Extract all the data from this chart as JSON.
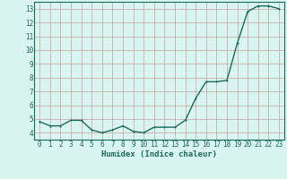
{
  "x": [
    0,
    1,
    2,
    3,
    4,
    5,
    6,
    7,
    8,
    9,
    10,
    11,
    12,
    13,
    14,
    15,
    16,
    17,
    18,
    19,
    20,
    21,
    22,
    23
  ],
  "y": [
    4.8,
    4.5,
    4.5,
    4.9,
    4.9,
    4.2,
    4.0,
    4.2,
    4.5,
    4.1,
    4.0,
    4.4,
    4.4,
    4.4,
    4.9,
    6.5,
    7.7,
    7.7,
    7.8,
    10.5,
    12.8,
    13.2,
    13.2,
    13.0
  ],
  "line_color": "#1a6b5a",
  "bg_color": "#d8f5f0",
  "grid_color": "#c8a0a0",
  "tick_color": "#1a6b5a",
  "xlabel": "Humidex (Indice chaleur)",
  "ylim": [
    3.5,
    13.5
  ],
  "xlim": [
    -0.5,
    23.5
  ],
  "yticks": [
    4,
    5,
    6,
    7,
    8,
    9,
    10,
    11,
    12,
    13
  ],
  "xticks": [
    0,
    1,
    2,
    3,
    4,
    5,
    6,
    7,
    8,
    9,
    10,
    11,
    12,
    13,
    14,
    15,
    16,
    17,
    18,
    19,
    20,
    21,
    22,
    23
  ],
  "xlabel_fontsize": 6.5,
  "tick_fontsize": 5.5,
  "marker_size": 2.0,
  "line_width": 1.0
}
